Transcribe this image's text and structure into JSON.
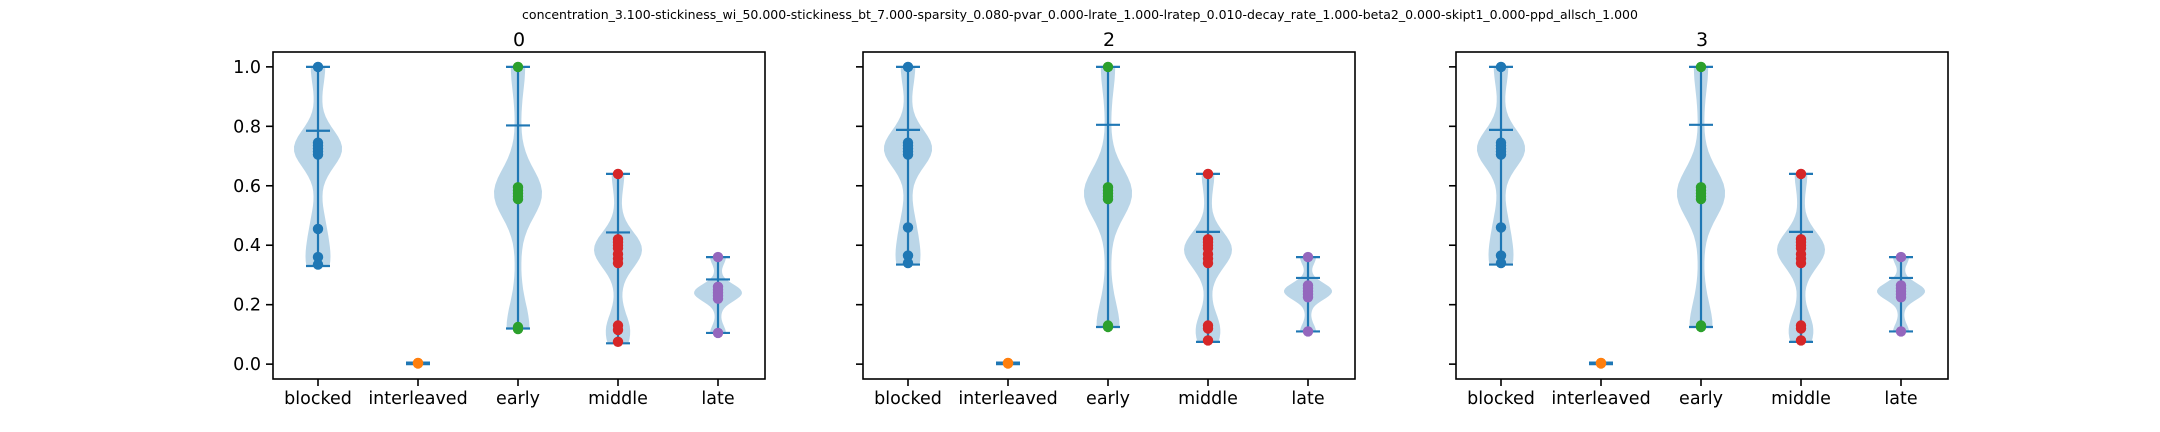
{
  "figure": {
    "suptitle": "concentration_3.100-stickiness_wi_50.000-stickiness_bt_7.000-sparsity_0.080-pvar_0.000-lrate_1.000-lratep_0.010-decay_rate_1.000-beta2_0.000-skipt1_0.000-ppd_allsch_1.000"
  },
  "chart_data": [
    {
      "type": "violin",
      "title": "0",
      "categories": [
        "blocked",
        "interleaved",
        "early",
        "middle",
        "late"
      ],
      "ylim": [
        -0.05,
        1.05
      ],
      "yticks": [
        0.0,
        0.2,
        0.4,
        0.6,
        0.8,
        1.0
      ],
      "ytick_labels": [
        "0.0",
        "0.2",
        "0.4",
        "0.6",
        "0.8",
        "1.0"
      ],
      "show_ytick_labels": true,
      "grid": false,
      "series": [
        {
          "category": "blocked",
          "min": 0.33,
          "max": 1.0,
          "mean": 0.785,
          "points": [
            1.0,
            0.745,
            0.735,
            0.725,
            0.715,
            0.705,
            0.455,
            0.36,
            0.335
          ]
        },
        {
          "category": "interleaved",
          "min": 0.0,
          "max": 0.005,
          "mean": 0.0025,
          "points": [
            0.004,
            0.003,
            0.002
          ]
        },
        {
          "category": "early",
          "min": 0.12,
          "max": 1.0,
          "mean": 0.803,
          "points": [
            1.0,
            0.595,
            0.585,
            0.575,
            0.565,
            0.555,
            0.125,
            0.118
          ]
        },
        {
          "category": "middle",
          "min": 0.07,
          "max": 0.64,
          "mean": 0.443,
          "points": [
            0.64,
            0.42,
            0.41,
            0.4,
            0.39,
            0.37,
            0.355,
            0.34,
            0.13,
            0.115,
            0.075
          ]
        },
        {
          "category": "late",
          "min": 0.105,
          "max": 0.36,
          "mean": 0.285,
          "points": [
            0.36,
            0.26,
            0.25,
            0.24,
            0.23,
            0.22,
            0.105
          ]
        }
      ]
    },
    {
      "type": "violin",
      "title": "2",
      "categories": [
        "blocked",
        "interleaved",
        "early",
        "middle",
        "late"
      ],
      "ylim": [
        -0.05,
        1.05
      ],
      "yticks": [
        0.0,
        0.2,
        0.4,
        0.6,
        0.8,
        1.0
      ],
      "show_ytick_labels": false,
      "grid": false,
      "series": [
        {
          "category": "blocked",
          "min": 0.335,
          "max": 1.0,
          "mean": 0.788,
          "points": [
            1.0,
            0.745,
            0.735,
            0.725,
            0.715,
            0.705,
            0.46,
            0.365,
            0.34
          ]
        },
        {
          "category": "interleaved",
          "min": 0.0,
          "max": 0.005,
          "mean": 0.0025,
          "points": [
            0.004,
            0.003,
            0.002
          ]
        },
        {
          "category": "early",
          "min": 0.125,
          "max": 1.0,
          "mean": 0.805,
          "points": [
            1.0,
            0.595,
            0.585,
            0.575,
            0.565,
            0.555,
            0.13,
            0.125
          ]
        },
        {
          "category": "middle",
          "min": 0.075,
          "max": 0.64,
          "mean": 0.445,
          "points": [
            0.64,
            0.42,
            0.41,
            0.4,
            0.39,
            0.37,
            0.355,
            0.34,
            0.13,
            0.12,
            0.08
          ]
        },
        {
          "category": "late",
          "min": 0.11,
          "max": 0.36,
          "mean": 0.29,
          "points": [
            0.36,
            0.265,
            0.255,
            0.245,
            0.235,
            0.225,
            0.11
          ]
        }
      ]
    },
    {
      "type": "violin",
      "title": "3",
      "categories": [
        "blocked",
        "interleaved",
        "early",
        "middle",
        "late"
      ],
      "ylim": [
        -0.05,
        1.05
      ],
      "yticks": [
        0.0,
        0.2,
        0.4,
        0.6,
        0.8,
        1.0
      ],
      "show_ytick_labels": false,
      "grid": false,
      "series": [
        {
          "category": "blocked",
          "min": 0.335,
          "max": 1.0,
          "mean": 0.788,
          "points": [
            1.0,
            0.745,
            0.735,
            0.725,
            0.715,
            0.705,
            0.46,
            0.365,
            0.34
          ]
        },
        {
          "category": "interleaved",
          "min": 0.0,
          "max": 0.005,
          "mean": 0.0025,
          "points": [
            0.004,
            0.003,
            0.002
          ]
        },
        {
          "category": "early",
          "min": 0.125,
          "max": 1.0,
          "mean": 0.805,
          "points": [
            1.0,
            0.595,
            0.585,
            0.575,
            0.565,
            0.555,
            0.13,
            0.125
          ]
        },
        {
          "category": "middle",
          "min": 0.075,
          "max": 0.64,
          "mean": 0.445,
          "points": [
            0.64,
            0.42,
            0.41,
            0.4,
            0.39,
            0.37,
            0.355,
            0.34,
            0.13,
            0.12,
            0.08
          ]
        },
        {
          "category": "late",
          "min": 0.11,
          "max": 0.36,
          "mean": 0.29,
          "points": [
            0.36,
            0.265,
            0.255,
            0.245,
            0.235,
            0.225,
            0.11
          ]
        }
      ]
    }
  ],
  "colors": {
    "violin": "#1f77b4",
    "points": {
      "blocked": "#1f77b4",
      "interleaved": "#ff7f0e",
      "early": "#2ca02c",
      "middle": "#d62728",
      "late": "#9467bd"
    }
  }
}
